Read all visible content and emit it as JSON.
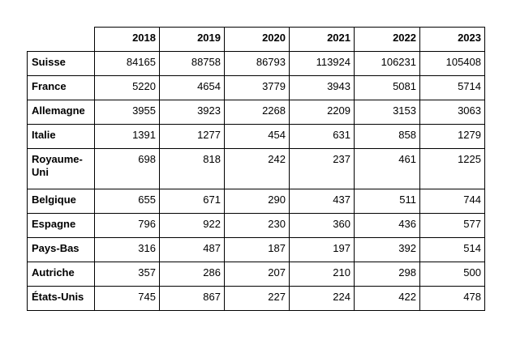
{
  "table": {
    "years": [
      "2018",
      "2019",
      "2020",
      "2021",
      "2022",
      "2023"
    ],
    "rows": [
      {
        "country": "Suisse",
        "values": [
          "84165",
          "88758",
          "86793",
          "113924",
          "106231",
          "105408"
        ]
      },
      {
        "country": "France",
        "values": [
          "5220",
          "4654",
          "3779",
          "3943",
          "5081",
          "5714"
        ]
      },
      {
        "country": "Allemagne",
        "values": [
          "3955",
          "3923",
          "2268",
          "2209",
          "3153",
          "3063"
        ]
      },
      {
        "country": "Italie",
        "values": [
          "1391",
          "1277",
          "454",
          "631",
          "858",
          "1279"
        ]
      },
      {
        "country": "Royaume-Uni",
        "values": [
          "698",
          "818",
          "242",
          "237",
          "461",
          "1225"
        ]
      },
      {
        "country": "Belgique",
        "values": [
          "655",
          "671",
          "290",
          "437",
          "511",
          "744"
        ]
      },
      {
        "country": "Espagne",
        "values": [
          "796",
          "922",
          "230",
          "360",
          "436",
          "577"
        ]
      },
      {
        "country": "Pays-Bas",
        "values": [
          "316",
          "487",
          "187",
          "197",
          "392",
          "514"
        ]
      },
      {
        "country": "Autriche",
        "values": [
          "357",
          "286",
          "207",
          "210",
          "298",
          "500"
        ]
      },
      {
        "country": "États-Unis",
        "values": [
          "745",
          "867",
          "227",
          "224",
          "422",
          "478"
        ]
      }
    ]
  }
}
